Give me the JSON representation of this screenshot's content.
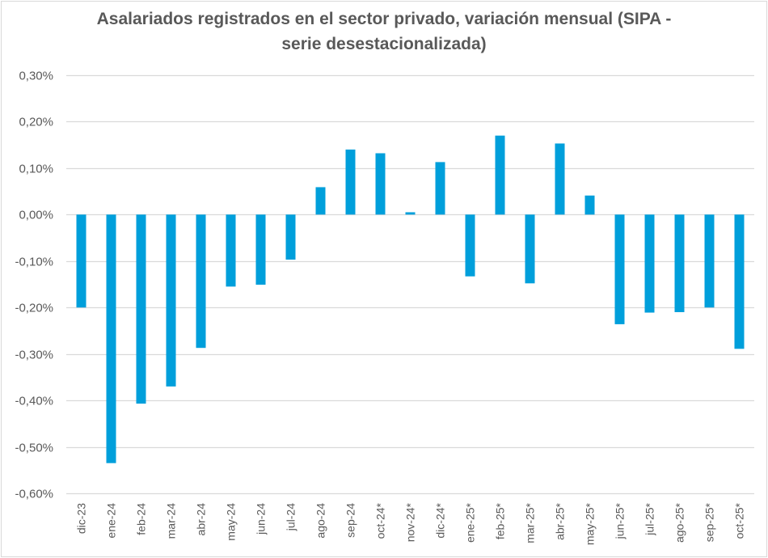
{
  "chart_data": {
    "type": "bar",
    "title_line1": "Asalariados registrados en el sector privado, variación mensual (SIPA -",
    "title_line2": "serie desestacionalizada)",
    "xlabel": "",
    "ylabel": "",
    "ylim": [
      -0.6,
      0.3
    ],
    "yticks": [
      0.3,
      0.2,
      0.1,
      0.0,
      -0.1,
      -0.2,
      -0.3,
      -0.4,
      -0.5,
      -0.6
    ],
    "ytick_labels": [
      "0,30%",
      "0,20%",
      "0,10%",
      "0,00%",
      "-0,10%",
      "-0,20%",
      "-0,30%",
      "-0,40%",
      "-0,50%",
      "-0,60%"
    ],
    "grid": true,
    "legend": "none",
    "bar_color": "#009fdb",
    "categories": [
      "dic-23",
      "ene-24",
      "feb-24",
      "mar-24",
      "abr-24",
      "may-24",
      "jun-24",
      "jul-24",
      "ago-24",
      "sep-24",
      "oct-24*",
      "nov-24*",
      "dic-24*",
      "ene-25*",
      "feb-25*",
      "mar-25*",
      "abr-25*",
      "may-25*",
      "jun-25*",
      "jul-25*",
      "ago-25*",
      "sep-25*",
      "oct-25*"
    ],
    "values": [
      -0.2,
      -0.535,
      -0.407,
      -0.37,
      -0.287,
      -0.155,
      -0.151,
      -0.097,
      0.059,
      0.14,
      0.132,
      0.005,
      0.113,
      -0.133,
      0.17,
      -0.148,
      0.153,
      0.041,
      -0.236,
      -0.211,
      -0.21,
      -0.2,
      -0.289
    ],
    "unit": "%"
  }
}
